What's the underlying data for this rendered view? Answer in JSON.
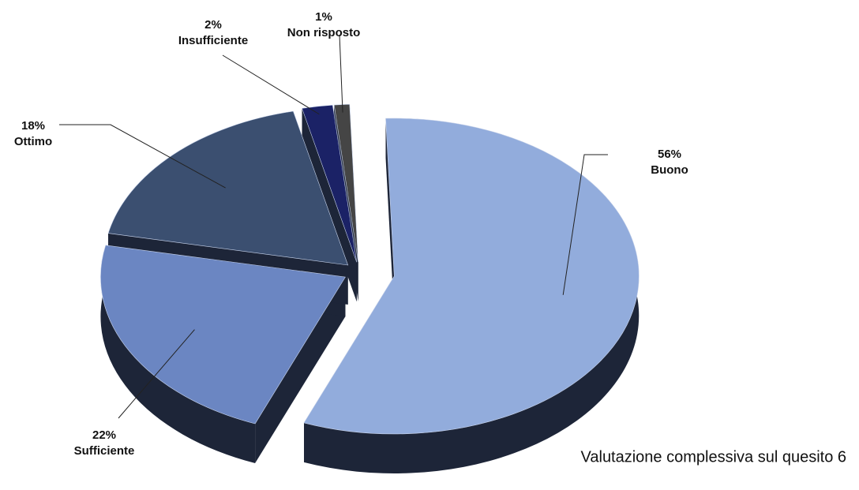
{
  "chart_data": {
    "type": "pie",
    "title": "Valutazione complessiva sul quesito 6",
    "categories": [
      "Buono",
      "Sufficiente",
      "Ottimo",
      "Insufficiente",
      "Non risposto"
    ],
    "values": [
      56,
      22,
      18,
      2,
      1
    ],
    "value_labels": [
      "56%",
      "22%",
      "18%",
      "2%",
      "1%"
    ],
    "colors": [
      "#92acdc",
      "#6b86c2",
      "#3b4f70",
      "#1b2266",
      "#454545"
    ],
    "side_color": "#1d2538",
    "three_d": true,
    "exploded": true
  }
}
